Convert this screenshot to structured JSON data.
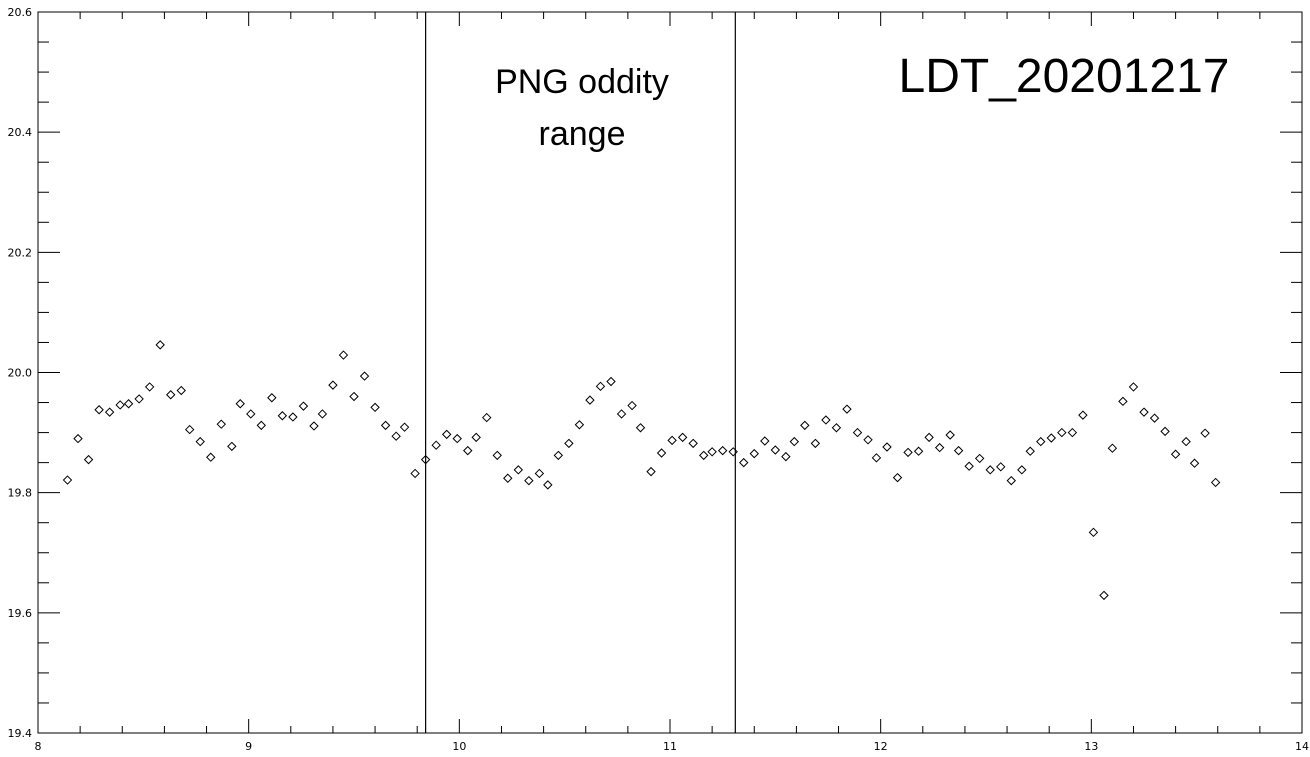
{
  "chart_data": {
    "type": "scatter",
    "title": "",
    "xlabel": "",
    "ylabel": "",
    "xlim": [
      8,
      14
    ],
    "ylim": [
      19.4,
      20.6
    ],
    "x_ticks": [
      8,
      9,
      10,
      11,
      12,
      13,
      14
    ],
    "y_ticks": [
      19.4,
      19.6,
      19.8,
      20.0,
      20.2,
      20.4,
      20.6
    ],
    "x_tick_labels": [
      "8",
      "9",
      "10",
      "11",
      "12",
      "13",
      "14"
    ],
    "y_tick_labels": [
      "19.4",
      "19.6",
      "19.8",
      "20.0",
      "20.2",
      "20.4",
      "20.6"
    ],
    "marker": "diamond",
    "grid": false,
    "vertical_lines": [
      9.84,
      11.31
    ],
    "annotations": {
      "title_text": "LDT_20201217",
      "range_line1": "PNG oddity",
      "range_line2": "range"
    },
    "series": [
      {
        "x": [
          8.14,
          8.19,
          8.24,
          8.29,
          8.34,
          8.39,
          8.43,
          8.48,
          8.53,
          8.58,
          8.63,
          8.68,
          8.72,
          8.77,
          8.82,
          8.87,
          8.92,
          8.96,
          9.01,
          9.06,
          9.11,
          9.16,
          9.21,
          9.26,
          9.31,
          9.35,
          9.4,
          9.45,
          9.5,
          9.55,
          9.6,
          9.65,
          9.7,
          9.74,
          9.79,
          9.84,
          9.89,
          9.94,
          9.99,
          10.04,
          10.08,
          10.13,
          10.18,
          10.23,
          10.28,
          10.33,
          10.38,
          10.42,
          10.47,
          10.52,
          10.57,
          10.62,
          10.67,
          10.72,
          10.77,
          10.82,
          10.86,
          10.91,
          10.96,
          11.01,
          11.06,
          11.11,
          11.16,
          11.2,
          11.25,
          11.3,
          11.35,
          11.4,
          11.45,
          11.5,
          11.55,
          11.59,
          11.64,
          11.69,
          11.74,
          11.79,
          11.84,
          11.89,
          11.94,
          11.98,
          12.03,
          12.08,
          12.13,
          12.18,
          12.23,
          12.28,
          12.33,
          12.37,
          12.42,
          12.47,
          12.52,
          12.57,
          12.62,
          12.67,
          12.71,
          12.76,
          12.81,
          12.86,
          12.91,
          12.96,
          13.01,
          13.06,
          13.1,
          13.15,
          13.2,
          13.25,
          13.3,
          13.35,
          13.4,
          13.45,
          13.49,
          13.54,
          13.59
        ],
        "y": [
          19.821,
          19.89,
          19.855,
          19.938,
          19.934,
          19.946,
          19.948,
          19.956,
          19.976,
          20.046,
          19.963,
          19.97,
          19.905,
          19.885,
          19.859,
          19.914,
          19.877,
          19.948,
          19.931,
          19.912,
          19.958,
          19.928,
          19.926,
          19.944,
          19.911,
          19.931,
          19.979,
          20.029,
          19.96,
          19.994,
          19.942,
          19.912,
          19.894,
          19.909,
          19.832,
          19.855,
          19.879,
          19.897,
          19.89,
          19.87,
          19.892,
          19.925,
          19.862,
          19.824,
          19.838,
          19.82,
          19.832,
          19.813,
          19.862,
          19.882,
          19.913,
          19.954,
          19.977,
          19.985,
          19.931,
          19.945,
          19.908,
          19.835,
          19.866,
          19.887,
          19.892,
          19.882,
          19.862,
          19.868,
          19.87,
          19.868,
          19.85,
          19.865,
          19.886,
          19.871,
          19.86,
          19.885,
          19.912,
          19.882,
          19.921,
          19.908,
          19.939,
          19.9,
          19.888,
          19.858,
          19.876,
          19.825,
          19.867,
          19.869,
          19.892,
          19.875,
          19.896,
          19.87,
          19.844,
          19.857,
          19.838,
          19.843,
          19.82,
          19.838,
          19.869,
          19.885,
          19.891,
          19.9,
          19.9,
          19.929,
          19.734,
          19.629,
          19.874,
          19.952,
          19.976,
          19.934,
          19.924,
          19.902,
          19.864,
          19.885,
          19.849,
          19.899,
          19.817
        ]
      }
    ]
  }
}
